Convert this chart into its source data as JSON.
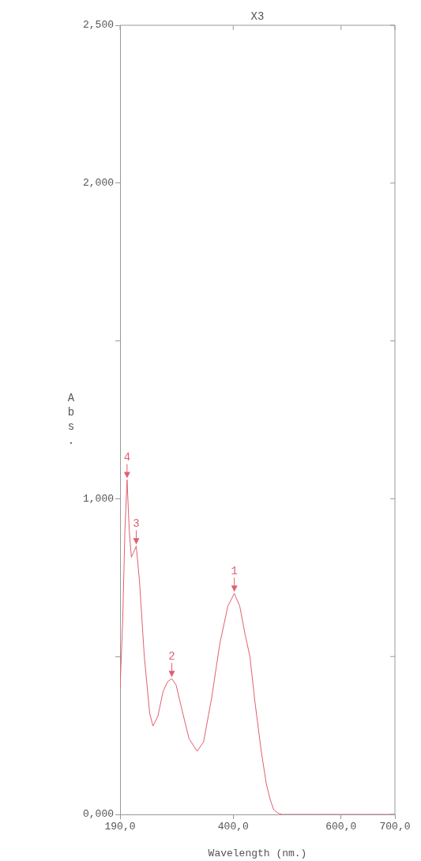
{
  "chart_data": {
    "type": "line",
    "title": "X3",
    "xlabel": "Wavelength (nm.)",
    "ylabel": "Abs.",
    "series": [
      {
        "color": "#e06070",
        "x": [
          190,
          195,
          199,
          203,
          207,
          211,
          215,
          220,
          226,
          235,
          245,
          251,
          260,
          270,
          278,
          286,
          294,
          305,
          318,
          333,
          345,
          360,
          375,
          390,
          402,
          412,
          422,
          431,
          440,
          446,
          452,
          461,
          468,
          475,
          482,
          490,
          500,
          550,
          600,
          650,
          700
        ],
        "values": [
          0.4,
          0.62,
          0.9,
          1.06,
          0.9,
          0.815,
          0.83,
          0.85,
          0.74,
          0.5,
          0.32,
          0.28,
          0.31,
          0.39,
          0.42,
          0.43,
          0.41,
          0.33,
          0.24,
          0.2,
          0.23,
          0.37,
          0.54,
          0.66,
          0.7,
          0.66,
          0.57,
          0.5,
          0.36,
          0.28,
          0.2,
          0.1,
          0.05,
          0.015,
          0.005,
          0,
          0,
          0,
          0,
          0,
          0
        ]
      }
    ],
    "xlim": [
      190,
      700
    ],
    "xticks": [
      {
        "value": 190,
        "label": "190,0"
      },
      {
        "value": 400,
        "label": "400,0"
      },
      {
        "value": 600,
        "label": "600,0"
      },
      {
        "value": 700,
        "label": "700,0"
      }
    ],
    "ylim": [
      0,
      2.5
    ],
    "yticks": [
      {
        "value": 0,
        "label": "0,000"
      },
      {
        "value": 0.5,
        "label": null
      },
      {
        "value": 1,
        "label": "1,000"
      },
      {
        "value": 1.5,
        "label": null
      },
      {
        "value": 2,
        "label": "2,000"
      },
      {
        "value": 2.5,
        "label": "2,500"
      }
    ],
    "annotations": [
      {
        "text": "1",
        "x": 402,
        "y": 0.7
      },
      {
        "text": "2",
        "x": 286,
        "y": 0.43
      },
      {
        "text": "3",
        "x": 220,
        "y": 0.85
      },
      {
        "text": "4",
        "x": 203,
        "y": 1.06
      }
    ],
    "grid": false,
    "legend": false,
    "marker": "none",
    "line_style": "solid"
  }
}
